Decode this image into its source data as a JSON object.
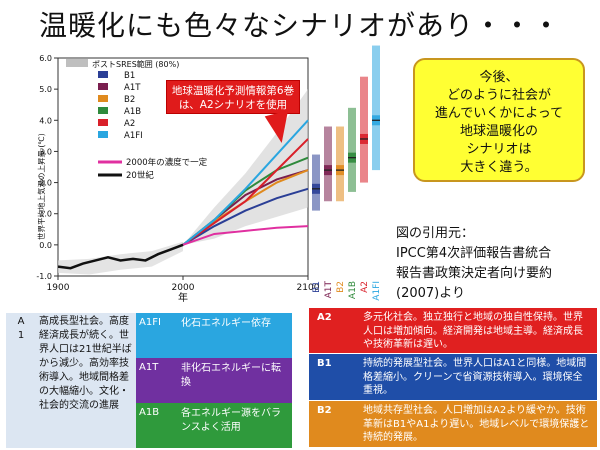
{
  "title": "温暖化にも色々なシナリオがあり・・・",
  "callout_red": [
    "地球温暖化予測情報第6巻",
    "は、A2シナリオを使用"
  ],
  "note_lines": [
    "今後、",
    "どのように社会が",
    "進んでいくかによって",
    "地球温暖化の",
    "シナリオは",
    "大きく違う。"
  ],
  "citation_lines": [
    "図の引用元：",
    "IPCC第4次評価報告書統合",
    "報告書政策決定者向け要約",
    "(2007)より"
  ],
  "chart_data": {
    "type": "line",
    "ylabel": "世界平均地上気温の上昇量 (℃)",
    "xlabel": "年",
    "xlim": [
      1900,
      2100
    ],
    "ylim": [
      -1.0,
      6.0
    ],
    "x_ticks": [
      "1900",
      "2000",
      "2100"
    ],
    "y_ticks": [
      "-1.0",
      "0.0",
      "1.0",
      "2.0",
      "3.0",
      "4.0",
      "5.0",
      "6.0"
    ],
    "legend_title": "ポストSRES範囲 (80%)",
    "legend_position": "top-left",
    "grid": false,
    "series": [
      {
        "name": "B1",
        "color": "#2b3f96",
        "x": [
          2000,
          2025,
          2050,
          2075,
          2100
        ],
        "values": [
          0.0,
          0.6,
          1.1,
          1.5,
          1.8
        ]
      },
      {
        "name": "A1T",
        "color": "#7a1f4f",
        "x": [
          2000,
          2025,
          2050,
          2075,
          2100
        ],
        "values": [
          0.0,
          0.8,
          1.6,
          2.1,
          2.4
        ]
      },
      {
        "name": "B2",
        "color": "#e08a1e",
        "x": [
          2000,
          2025,
          2050,
          2075,
          2100
        ],
        "values": [
          0.0,
          0.75,
          1.4,
          2.0,
          2.4
        ]
      },
      {
        "name": "A1B",
        "color": "#2f8a3c",
        "x": [
          2000,
          2025,
          2050,
          2075,
          2100
        ],
        "values": [
          0.0,
          0.8,
          1.75,
          2.4,
          2.8
        ]
      },
      {
        "name": "A2",
        "color": "#d9202a",
        "x": [
          2000,
          2025,
          2050,
          2075,
          2100
        ],
        "values": [
          0.0,
          0.7,
          1.4,
          2.4,
          3.4
        ]
      },
      {
        "name": "A1FI",
        "color": "#2aa6e0",
        "x": [
          2000,
          2025,
          2050,
          2075,
          2100
        ],
        "values": [
          0.0,
          0.8,
          1.8,
          2.9,
          4.0
        ]
      },
      {
        "name": "2000年の濃度で一定",
        "color": "#e030a0",
        "x": [
          2000,
          2025,
          2050,
          2075,
          2100
        ],
        "values": [
          0.0,
          0.35,
          0.45,
          0.55,
          0.6
        ]
      },
      {
        "name": "20世紀",
        "color": "#111111",
        "x": [
          1900,
          1910,
          1920,
          1930,
          1940,
          1950,
          1960,
          1970,
          1980,
          1990,
          2000
        ],
        "values": [
          -0.7,
          -0.75,
          -0.6,
          -0.5,
          -0.4,
          -0.5,
          -0.45,
          -0.5,
          -0.3,
          -0.15,
          0.0
        ]
      }
    ],
    "ranges": [
      {
        "name": "B1",
        "color": "#2b3f96",
        "low": 1.1,
        "high": 2.9,
        "best": 1.8
      },
      {
        "name": "A1T",
        "color": "#7a1f4f",
        "low": 1.4,
        "high": 3.8,
        "best": 2.4
      },
      {
        "name": "B2",
        "color": "#e08a1e",
        "low": 1.4,
        "high": 3.8,
        "best": 2.4
      },
      {
        "name": "A1B",
        "color": "#2f8a3c",
        "low": 1.7,
        "high": 4.4,
        "best": 2.8
      },
      {
        "name": "A2",
        "color": "#d9202a",
        "low": 2.0,
        "high": 5.4,
        "best": 3.4
      },
      {
        "name": "A1FI",
        "color": "#2aa6e0",
        "low": 2.4,
        "high": 6.4,
        "best": 4.0
      }
    ]
  },
  "groups": {
    "a1": {
      "code": "A\n1",
      "description": "高成長型社会。高度経済成長が続く。世界人口は21世紀半ばから減少。高効率技術導入。地域間格差の大幅縮小。文化・社会的交流の進展",
      "bg": "#dce6f2"
    },
    "subs": [
      {
        "code": "A1FI",
        "description": "化石エネルギー依存",
        "bg": "#2aa6e0"
      },
      {
        "code": "A1T",
        "description": "非化石エネルギーに転換",
        "bg": "#7030a0"
      },
      {
        "code": "A1B",
        "description": "各エネルギー源をバランスよく活用",
        "bg": "#2f9a3c"
      }
    ],
    "right": [
      {
        "code": "A2",
        "description": "多元化社会。独立独行と地域の独自性保持。世界人口は増加傾向。経済開発は地域主導。経済成長や技術革新は遅い。",
        "bg": "#e02020"
      },
      {
        "code": "B1",
        "description": "持続的発展型社会。世界人口はA1と同様。地域間格差縮小。クリーンで省資源技術導入。環境保全重視。",
        "bg": "#1f4ea8"
      },
      {
        "code": "B2",
        "description": "地域共存型社会。人口増加はA2より緩やか。技術革新はB1やA1より遅い。地域レベルで環境保護と持続的発展。",
        "bg": "#e08a1e"
      }
    ]
  }
}
